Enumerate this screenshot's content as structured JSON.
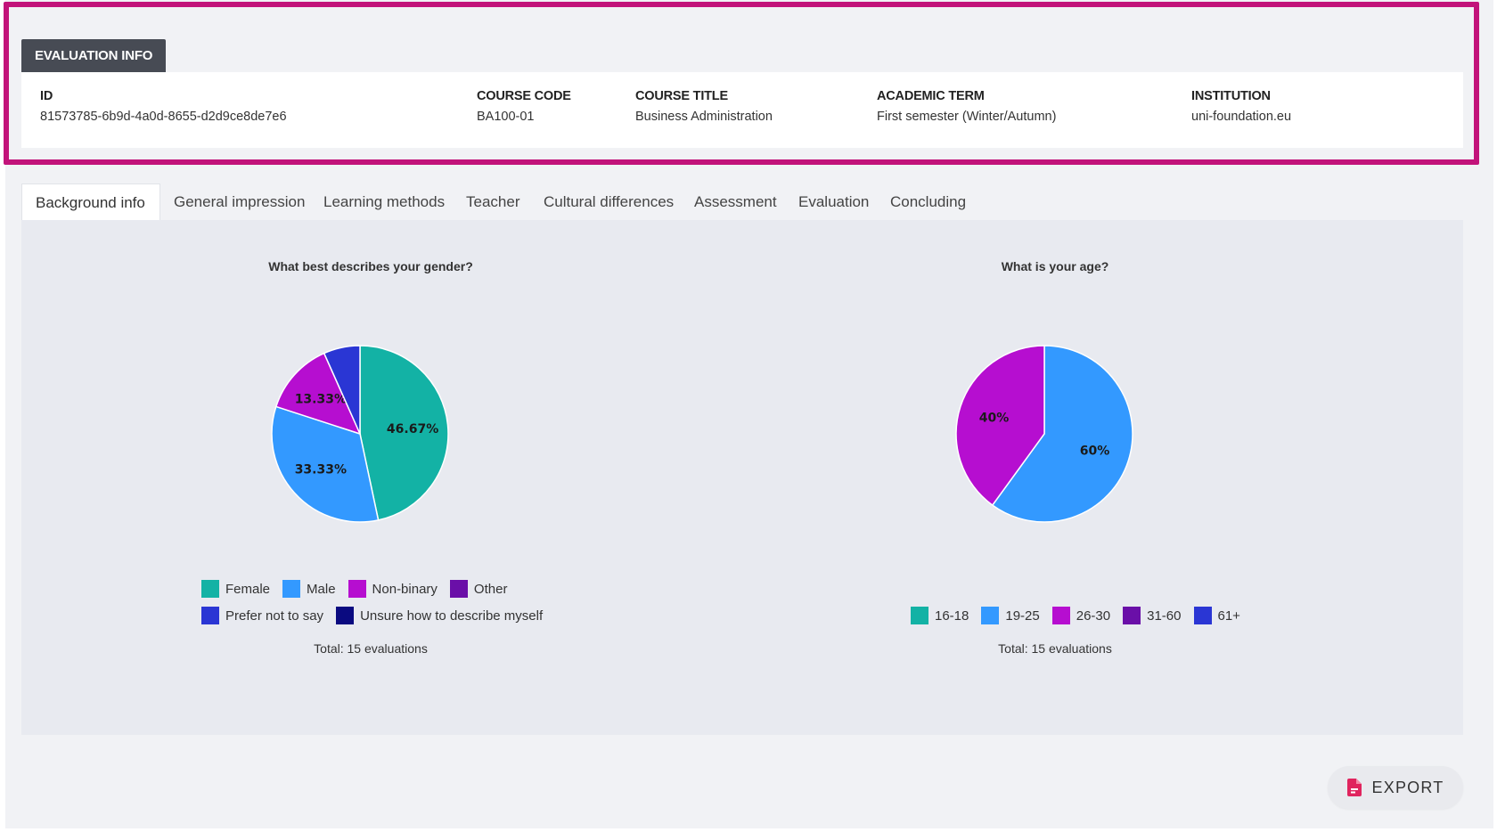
{
  "evaluation_info": {
    "tab_label": "EVALUATION INFO",
    "fields": [
      {
        "label": "ID",
        "value": "81573785-6b9d-4a0d-8655-d2d9ce8de7e6"
      },
      {
        "label": "COURSE CODE",
        "value": "BA100-01"
      },
      {
        "label": "COURSE TITLE",
        "value": "Business Administration"
      },
      {
        "label": "ACADEMIC TERM",
        "value": "First semester (Winter/Autumn)"
      },
      {
        "label": "INSTITUTION",
        "value": "uni-foundation.eu"
      }
    ]
  },
  "tabs": [
    {
      "label": "Background info",
      "active": true
    },
    {
      "label": "General impression"
    },
    {
      "label": "Learning methods"
    },
    {
      "label": "Teacher"
    },
    {
      "label": "Cultural differences"
    },
    {
      "label": "Assessment"
    },
    {
      "label": "Evaluation"
    },
    {
      "label": "Concluding"
    }
  ],
  "chart_data": [
    {
      "type": "pie",
      "title": "What best describes your gender?",
      "categories": [
        "Female",
        "Male",
        "Non-binary",
        "Other",
        "Prefer not to say",
        "Unsure how to describe myself"
      ],
      "values": [
        46.67,
        33.33,
        13.33,
        0,
        6.67,
        0
      ],
      "labels": [
        "46.67%",
        "33.33%",
        "13.33%",
        "",
        "",
        ""
      ],
      "colors": [
        "#13b2a5",
        "#3399ff",
        "#b60ed0",
        "#6a0fa8",
        "#2a36d4",
        "#0a0a80"
      ],
      "legend_position": "bottom",
      "total": "Total: 15 evaluations"
    },
    {
      "type": "pie",
      "title": "What is your age?",
      "categories": [
        "16-18",
        "19-25",
        "26-30",
        "31-60",
        "61+"
      ],
      "values": [
        0,
        60,
        40,
        0,
        0
      ],
      "labels": [
        "",
        "60%",
        "40%",
        "",
        ""
      ],
      "colors": [
        "#13b2a5",
        "#3399ff",
        "#b60ed0",
        "#6a0fa8",
        "#2a36d4"
      ],
      "legend_position": "bottom",
      "total": "Total: 15 evaluations"
    }
  ],
  "export": {
    "label": "EXPORT",
    "icon": "pdf-file-icon",
    "icon_color": "#e0245e"
  }
}
